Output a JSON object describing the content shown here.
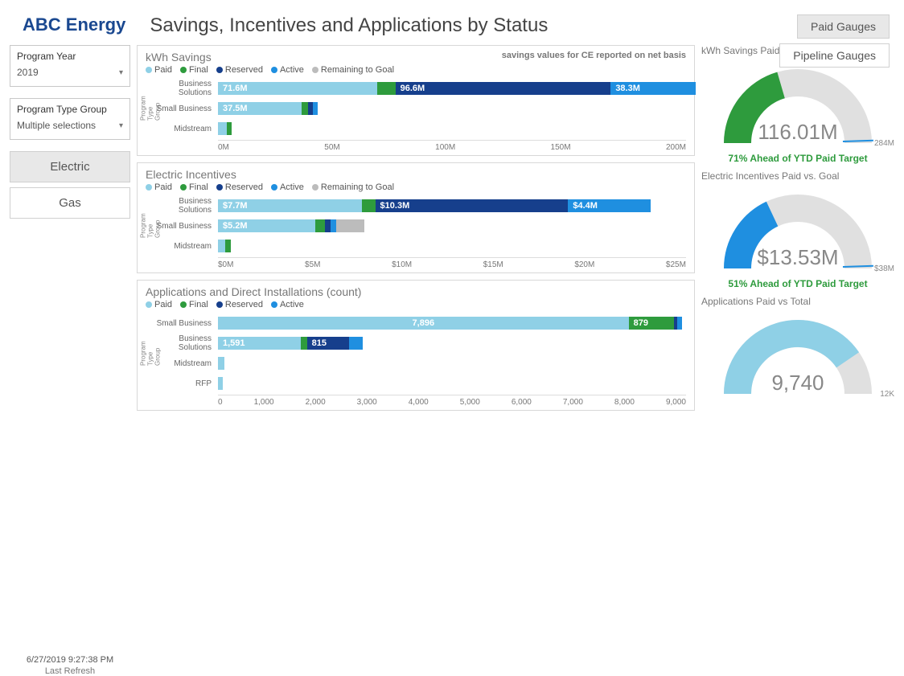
{
  "header": {
    "brand": "ABC Energy",
    "title": "Savings, Incentives and Applications by Status",
    "tabs": {
      "paid": "Paid Gauges",
      "pipeline": "Pipeline Gauges"
    }
  },
  "filters": {
    "year_label": "Program Year",
    "year_value": "2019",
    "type_label": "Program Type Group",
    "type_value": "Multiple selections",
    "electric": "Electric",
    "gas": "Gas"
  },
  "footer": {
    "timestamp": "6/27/2019 9:27:38 PM",
    "label": "Last Refresh"
  },
  "colors": {
    "paid": "#8fd0e6",
    "final": "#2e9b3d",
    "reserved": "#163f8c",
    "active": "#1f8fe0",
    "remaining": "#bcbcbc",
    "border": "#d8d8d8",
    "gauge_track": "#e0e0e0"
  },
  "legend": {
    "paid": "Paid",
    "final": "Final",
    "reserved": "Reserved",
    "active": "Active",
    "remaining": "Remaining to Goal"
  },
  "chart1": {
    "title": "kWh Savings",
    "subtitle": "savings values for CE reported on net basis",
    "yaxis": "Program Type Group",
    "xmax": 210,
    "xticks": [
      "0M",
      "50M",
      "100M",
      "150M",
      "200M"
    ],
    "rows": [
      {
        "cat": "Business Solutions",
        "segs": [
          {
            "c": "paid",
            "v": 71.6,
            "label": "71.6M"
          },
          {
            "c": "final",
            "v": 8,
            "label": ""
          },
          {
            "c": "reserved",
            "v": 96.6,
            "label": "96.6M"
          },
          {
            "c": "active",
            "v": 38.3,
            "label": "38.3M"
          }
        ]
      },
      {
        "cat": "Small Business",
        "segs": [
          {
            "c": "paid",
            "v": 37.5,
            "label": "37.5M"
          },
          {
            "c": "final",
            "v": 3,
            "label": ""
          },
          {
            "c": "reserved",
            "v": 2,
            "label": ""
          },
          {
            "c": "active",
            "v": 2,
            "label": ""
          }
        ]
      },
      {
        "cat": "Midstream",
        "segs": [
          {
            "c": "paid",
            "v": 4,
            "label": ""
          },
          {
            "c": "final",
            "v": 2,
            "label": ""
          }
        ]
      }
    ]
  },
  "chart2": {
    "title": "Electric Incentives",
    "yaxis": "Program Type Group",
    "xmax": 25,
    "xticks": [
      "$0M",
      "$5M",
      "$10M",
      "$15M",
      "$20M",
      "$25M"
    ],
    "rows": [
      {
        "cat": "Business Solutions",
        "segs": [
          {
            "c": "paid",
            "v": 7.7,
            "label": "$7.7M"
          },
          {
            "c": "final",
            "v": 0.7,
            "label": ""
          },
          {
            "c": "reserved",
            "v": 10.3,
            "label": "$10.3M"
          },
          {
            "c": "active",
            "v": 4.4,
            "label": "$4.4M"
          }
        ]
      },
      {
        "cat": "Small Business",
        "segs": [
          {
            "c": "paid",
            "v": 5.2,
            "label": "$5.2M"
          },
          {
            "c": "final",
            "v": 0.5,
            "label": ""
          },
          {
            "c": "reserved",
            "v": 0.3,
            "label": ""
          },
          {
            "c": "active",
            "v": 0.3,
            "label": ""
          },
          {
            "c": "remaining",
            "v": 1.5,
            "label": ""
          }
        ]
      },
      {
        "cat": "Midstream",
        "segs": [
          {
            "c": "paid",
            "v": 0.4,
            "label": ""
          },
          {
            "c": "final",
            "v": 0.3,
            "label": ""
          }
        ]
      }
    ]
  },
  "chart3": {
    "title": "Applications and Direct Installations (count)",
    "yaxis": "Program Type Group",
    "xmax": 9000,
    "xticks": [
      "0",
      "1,000",
      "2,000",
      "3,000",
      "4,000",
      "5,000",
      "6,000",
      "7,000",
      "8,000",
      "9,000"
    ],
    "rows": [
      {
        "cat": "Small Business",
        "segs": [
          {
            "c": "paid",
            "v": 7896,
            "label": "7,896",
            "center": true
          },
          {
            "c": "final",
            "v": 879,
            "label": "879"
          },
          {
            "c": "reserved",
            "v": 60,
            "label": ""
          },
          {
            "c": "active",
            "v": 60,
            "label": ""
          }
        ]
      },
      {
        "cat": "Business Solutions",
        "segs": [
          {
            "c": "paid",
            "v": 1591,
            "label": "1,591"
          },
          {
            "c": "final",
            "v": 120,
            "label": ""
          },
          {
            "c": "reserved",
            "v": 815,
            "label": "815"
          },
          {
            "c": "active",
            "v": 250,
            "label": ""
          }
        ]
      },
      {
        "cat": "Midstream",
        "segs": [
          {
            "c": "paid",
            "v": 120,
            "label": ""
          }
        ]
      },
      {
        "cat": "RFP",
        "segs": [
          {
            "c": "paid",
            "v": 40,
            "label": ""
          }
        ]
      }
    ]
  },
  "gauges": {
    "g1": {
      "title": "kWh Savings Paid vs. Goal",
      "value": "116.01M",
      "max": "284M",
      "pct": 0.41,
      "color": "#2e9b3d",
      "foot": "71% Ahead of YTD Paid Target",
      "tick": true
    },
    "g2": {
      "title": "Electric Incentives Paid vs. Goal",
      "value": "$13.53M",
      "max": "$38M",
      "pct": 0.36,
      "color": "#1f8fe0",
      "foot": "51% Ahead of YTD Paid Target",
      "tick": true
    },
    "g3": {
      "title": "Applications Paid vs Total",
      "value": "9,740",
      "max": "12K",
      "pct": 0.81,
      "color": "#8fd0e6",
      "foot": "",
      "tick": false
    }
  }
}
